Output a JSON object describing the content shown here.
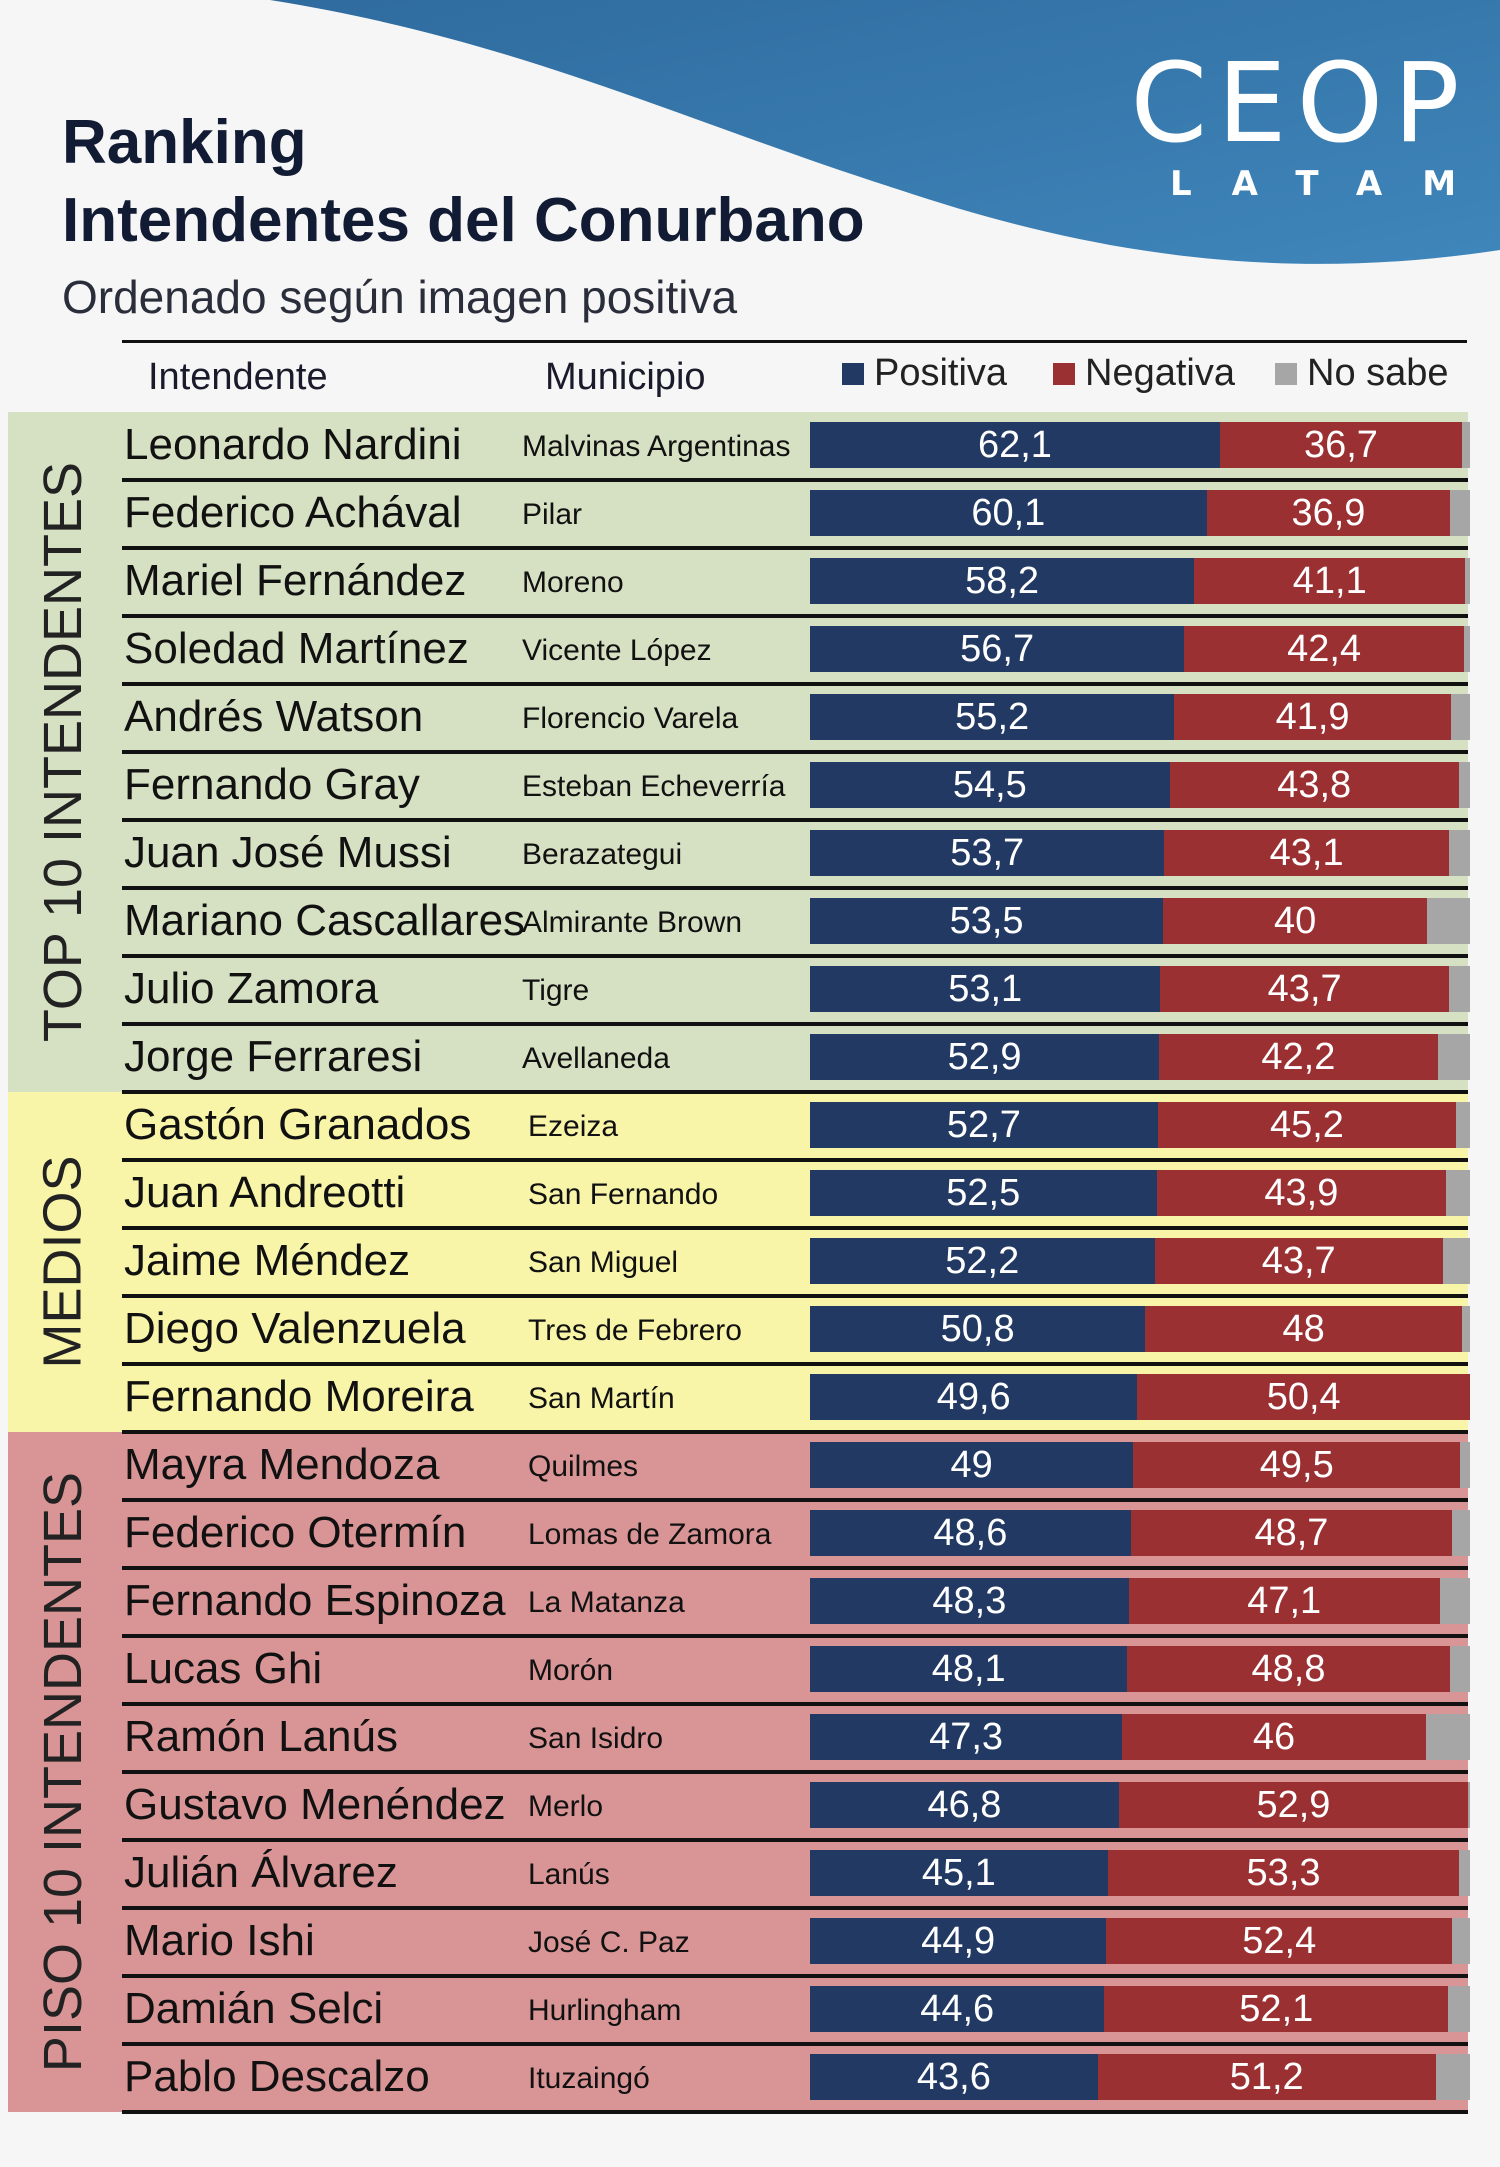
{
  "brand": {
    "name": "CEOP",
    "sub": "LATAM"
  },
  "header": {
    "title_line1": "Ranking",
    "title_line2": "Intendentes del Conurbano",
    "subtitle": "Ordenado según imagen positiva"
  },
  "columns": {
    "intendente": "Intendente",
    "municipio": "Municipio"
  },
  "legend": [
    {
      "label": "Positiva",
      "color": "#223a63"
    },
    {
      "label": "Negativa",
      "color": "#9a3032"
    },
    {
      "label": "No sabe",
      "color": "#a6a6a6"
    }
  ],
  "groups": [
    {
      "label": "TOP 10 INTENDENTES",
      "color": "#d6e1c3",
      "start": 0,
      "count": 10
    },
    {
      "label": "MEDIOS",
      "color": "#f8f5a9",
      "start": 10,
      "count": 5
    },
    {
      "label": "PISO 10 INTENDENTES",
      "color": "#d99596",
      "start": 15,
      "count": 10
    }
  ],
  "chart_data": {
    "type": "bar",
    "stacked": true,
    "orientation": "horizontal",
    "title": "Ranking Intendentes del Conurbano",
    "subtitle": "Ordenado según imagen positiva",
    "categories": [
      "Leonardo Nardini",
      "Federico Achával",
      "Mariel Fernández",
      "Soledad Martínez",
      "Andrés Watson",
      "Fernando Gray",
      "Juan José Mussi",
      "Mariano Cascallares",
      "Julio Zamora",
      "Jorge Ferraresi",
      "Gastón Granados",
      "Juan Andreotti",
      "Jaime Méndez",
      "Diego Valenzuela",
      "Fernando Moreira",
      "Mayra Mendoza",
      "Federico Otermín",
      "Fernando Espinoza",
      "Lucas Ghi",
      "Ramón Lanús",
      "Gustavo Menéndez",
      "Julián Álvarez",
      "Mario Ishi",
      "Damián Selci",
      "Pablo Descalzo"
    ],
    "municipios": [
      "Malvinas Argentinas",
      "Pilar",
      "Moreno",
      "Vicente López",
      "Florencio Varela",
      "Esteban Echeverría",
      "Berazategui",
      "Almirante Brown",
      "Tigre",
      "Avellaneda",
      "Ezeiza",
      "San Fernando",
      "San Miguel",
      "Tres de Febrero",
      "San Martín",
      "Quilmes",
      "Lomas de Zamora",
      "La Matanza",
      "Morón",
      "San Isidro",
      "Merlo",
      "Lanús",
      "José C. Paz",
      "Hurlingham",
      "Ituzaingó"
    ],
    "series": [
      {
        "name": "Positiva",
        "color": "#223a63",
        "values": [
          62.1,
          60.1,
          58.2,
          56.7,
          55.2,
          54.5,
          53.7,
          53.5,
          53.1,
          52.9,
          52.7,
          52.5,
          52.2,
          50.8,
          49.6,
          49,
          48.6,
          48.3,
          48.1,
          47.3,
          46.8,
          45.1,
          44.9,
          44.6,
          43.6
        ],
        "labels": [
          "62,1",
          "60,1",
          "58,2",
          "56,7",
          "55,2",
          "54,5",
          "53,7",
          "53,5",
          "53,1",
          "52,9",
          "52,7",
          "52,5",
          "52,2",
          "50,8",
          "49,6",
          "49",
          "48,6",
          "48,3",
          "48,1",
          "47,3",
          "46,8",
          "45,1",
          "44,9",
          "44,6",
          "43,6"
        ]
      },
      {
        "name": "Negativa",
        "color": "#9a3032",
        "values": [
          36.7,
          36.9,
          41.1,
          42.4,
          41.9,
          43.8,
          43.1,
          40,
          43.7,
          42.2,
          45.2,
          43.9,
          43.7,
          48,
          50.4,
          49.5,
          48.7,
          47.1,
          48.8,
          46,
          52.9,
          53.3,
          52.4,
          52.1,
          51.2
        ],
        "labels": [
          "36,7",
          "36,9",
          "41,1",
          "42,4",
          "41,9",
          "43,8",
          "43,1",
          "40",
          "43,7",
          "42,2",
          "45,2",
          "43,9",
          "43,7",
          "48",
          "50,4",
          "49,5",
          "48,7",
          "47,1",
          "48,8",
          "46",
          "52,9",
          "53,3",
          "52,4",
          "52,1",
          "51,2"
        ]
      },
      {
        "name": "No sabe",
        "color": "#a6a6a6",
        "values": [
          1.2,
          3,
          0.7,
          0.9,
          2.9,
          1.7,
          3.2,
          6.5,
          3.2,
          4.9,
          2.1,
          3.6,
          4.1,
          1.2,
          0,
          1.5,
          2.7,
          4.6,
          3.1,
          6.7,
          0.3,
          1.6,
          2.7,
          3.3,
          5.2
        ]
      }
    ],
    "xlim": [
      0,
      100
    ],
    "legend_position": "top"
  }
}
